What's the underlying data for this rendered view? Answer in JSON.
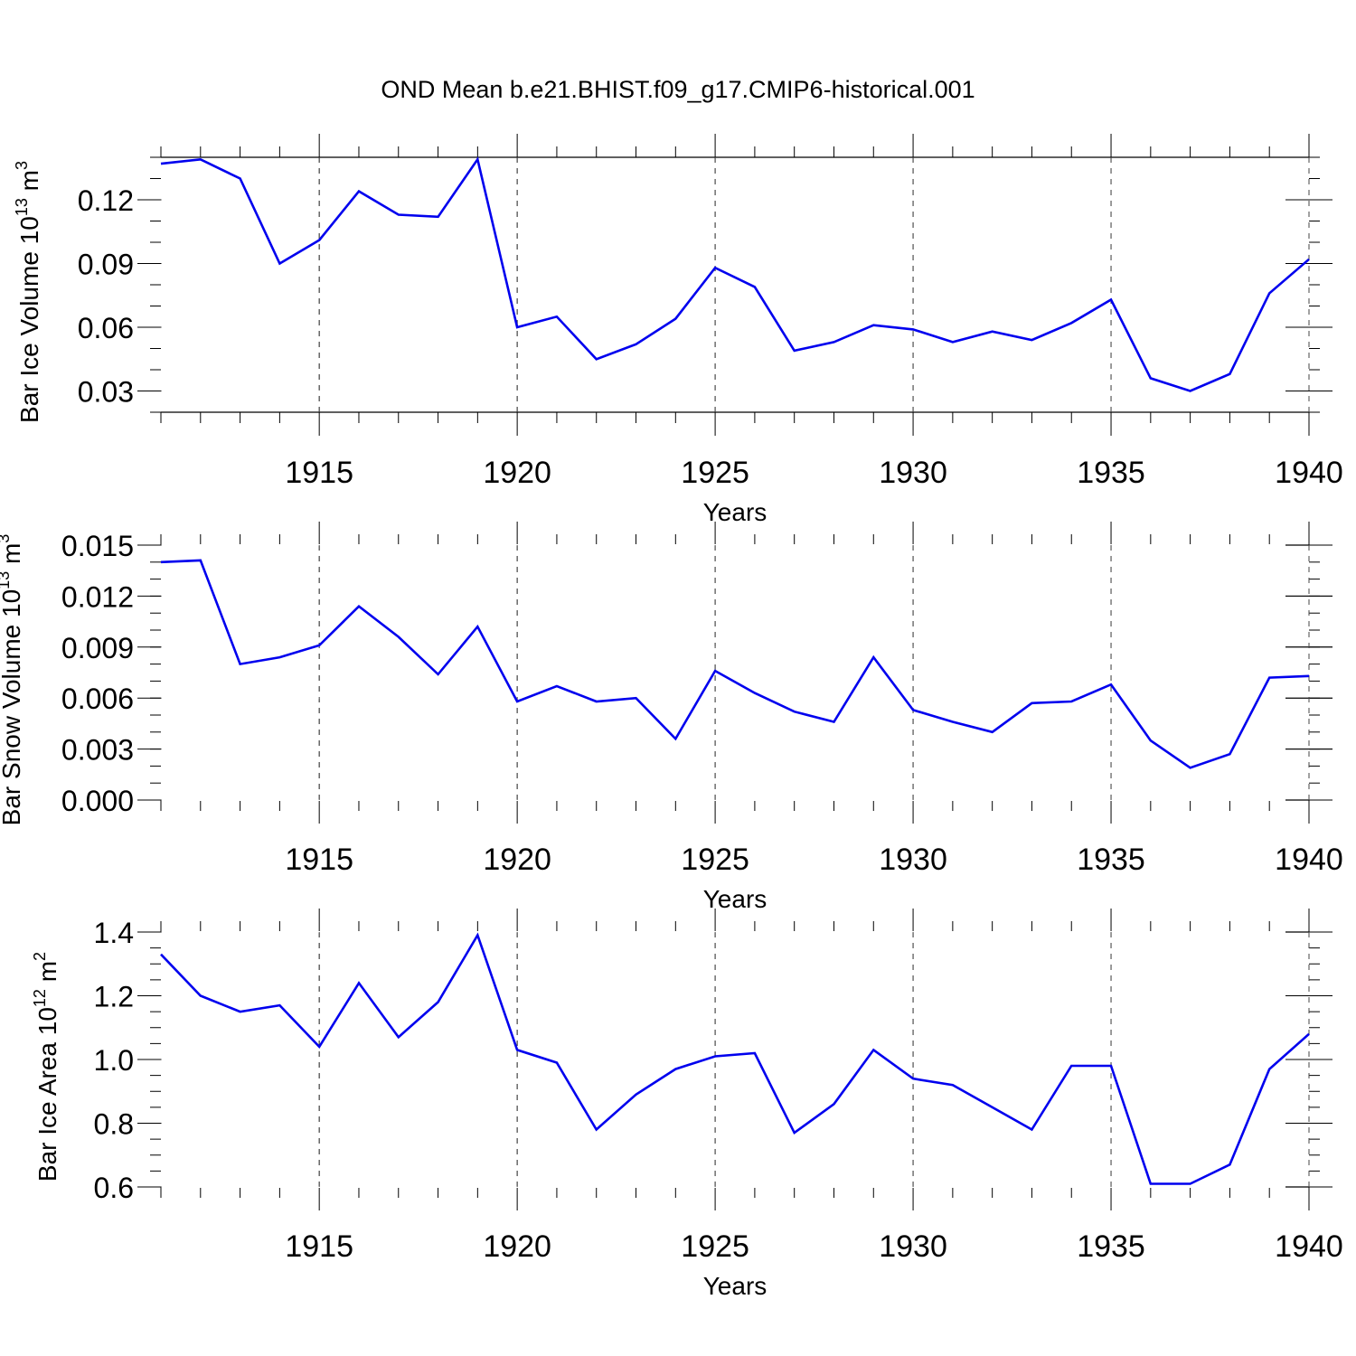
{
  "title": "OND Mean b.e21.BHIST.f09_g17.CMIP6-historical.001",
  "line_color": "#0000ee",
  "chart_data": [
    {
      "type": "line",
      "ylabel": "Bar Ice Volume 10",
      "ylabel_sup": "13",
      "ylabel_unit": "m",
      "ylabel_unit_sup": "3",
      "xlabel": "Years",
      "xlim": [
        1911,
        1940
      ],
      "ylim": [
        0.02,
        0.14
      ],
      "x_ticks": [
        1915,
        1920,
        1925,
        1930,
        1935,
        1940
      ],
      "y_ticks": [
        "0.03",
        "0.06",
        "0.09",
        "0.12"
      ],
      "y_minor_step": 0.01,
      "vgrid": "dashed",
      "x": [
        1911,
        1912,
        1913,
        1914,
        1915,
        1916,
        1917,
        1918,
        1919,
        1920,
        1921,
        1922,
        1923,
        1924,
        1925,
        1926,
        1927,
        1928,
        1929,
        1930,
        1931,
        1932,
        1933,
        1934,
        1935,
        1936,
        1937,
        1938,
        1939,
        1940
      ],
      "values": [
        0.137,
        0.139,
        0.13,
        0.09,
        0.101,
        0.124,
        0.113,
        0.112,
        0.139,
        0.06,
        0.065,
        0.045,
        0.052,
        0.064,
        0.088,
        0.079,
        0.049,
        0.053,
        0.061,
        0.059,
        0.053,
        0.058,
        0.054,
        0.062,
        0.073,
        0.036,
        0.03,
        0.038,
        0.076,
        0.092
      ]
    },
    {
      "type": "line",
      "ylabel": "Bar Snow Volume 10",
      "ylabel_sup": "13",
      "ylabel_unit": "m",
      "ylabel_unit_sup": "3",
      "xlabel": "Years",
      "xlim": [
        1911,
        1940
      ],
      "ylim": [
        0,
        0.015
      ],
      "x_ticks": [
        1915,
        1920,
        1925,
        1930,
        1935,
        1940
      ],
      "y_ticks": [
        "0.000",
        "0.003",
        "0.006",
        "0.009",
        "0.012",
        "0.015"
      ],
      "y_minor_step": 0.001,
      "vgrid": "dashed",
      "x": [
        1911,
        1912,
        1913,
        1914,
        1915,
        1916,
        1917,
        1918,
        1919,
        1920,
        1921,
        1922,
        1923,
        1924,
        1925,
        1926,
        1927,
        1928,
        1929,
        1930,
        1931,
        1932,
        1933,
        1934,
        1935,
        1936,
        1937,
        1938,
        1939,
        1940
      ],
      "values": [
        0.014,
        0.0141,
        0.008,
        0.0084,
        0.0091,
        0.0114,
        0.0096,
        0.0074,
        0.0102,
        0.0058,
        0.0067,
        0.0058,
        0.006,
        0.0036,
        0.0076,
        0.0063,
        0.0052,
        0.0046,
        0.0084,
        0.0053,
        0.0046,
        0.004,
        0.0057,
        0.0058,
        0.0068,
        0.0035,
        0.0019,
        0.0027,
        0.0072,
        0.0073
      ]
    },
    {
      "type": "line",
      "ylabel": "Bar Ice Area 10",
      "ylabel_sup": "12",
      "ylabel_unit": "m",
      "ylabel_unit_sup": "2",
      "xlabel": "Years",
      "xlim": [
        1911,
        1940
      ],
      "ylim": [
        0.6,
        1.4
      ],
      "x_ticks": [
        1915,
        1920,
        1925,
        1930,
        1935,
        1940
      ],
      "y_ticks": [
        "0.6",
        "0.8",
        "1.0",
        "1.2",
        "1.4"
      ],
      "y_minor_step": 0.05,
      "vgrid": "dashed",
      "x": [
        1911,
        1912,
        1913,
        1914,
        1915,
        1916,
        1917,
        1918,
        1919,
        1920,
        1921,
        1922,
        1923,
        1924,
        1925,
        1926,
        1927,
        1928,
        1929,
        1930,
        1931,
        1932,
        1933,
        1934,
        1935,
        1936,
        1937,
        1938,
        1939,
        1940
      ],
      "values": [
        1.33,
        1.2,
        1.15,
        1.17,
        1.04,
        1.24,
        1.07,
        1.18,
        1.39,
        1.03,
        0.99,
        0.78,
        0.89,
        0.97,
        1.01,
        1.02,
        0.77,
        0.86,
        1.03,
        0.94,
        0.92,
        0.85,
        0.78,
        0.98,
        0.98,
        0.61,
        0.61,
        0.67,
        0.97,
        1.08
      ]
    }
  ]
}
